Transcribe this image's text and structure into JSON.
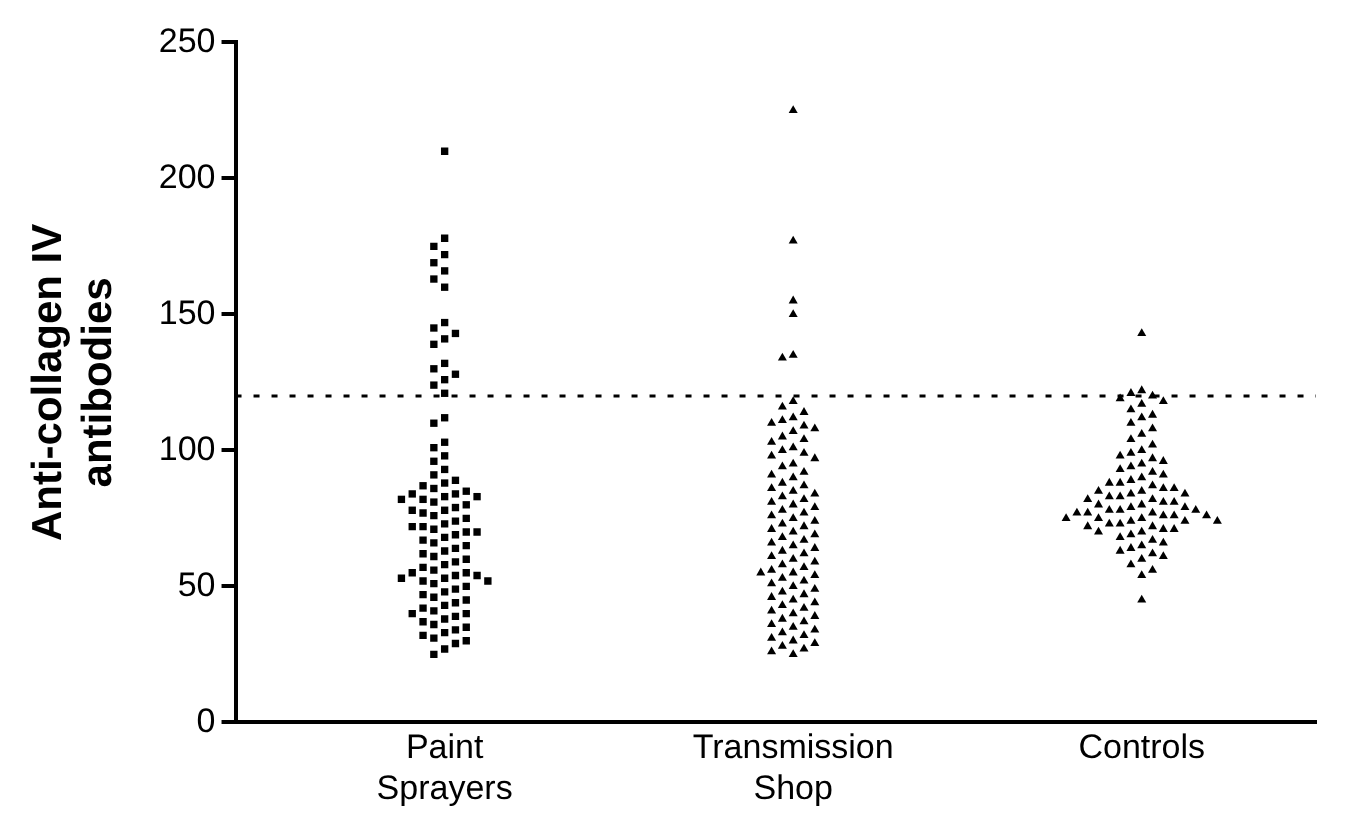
{
  "chart_data": {
    "type": "scatter",
    "ylabel": "Anti-collagen IV antibodies",
    "categories": [
      "Paint Sprayers",
      "Transmission Shop",
      "Controls"
    ],
    "series": [
      {
        "type": "scatter",
        "color": "#000000",
        "marker": "square",
        "x": [
          "Paint Sprayers",
          "Paint Sprayers",
          "Paint Sprayers",
          "Paint Sprayers",
          "Paint Sprayers",
          "Paint Sprayers",
          "Paint Sprayers",
          "Paint Sprayers",
          "Paint Sprayers",
          "Paint Sprayers",
          "Paint Sprayers",
          "Paint Sprayers",
          "Paint Sprayers",
          "Paint Sprayers",
          "Paint Sprayers",
          "Paint Sprayers",
          "Paint Sprayers",
          "Paint Sprayers",
          "Paint Sprayers",
          "Paint Sprayers",
          "Paint Sprayers",
          "Paint Sprayers",
          "Paint Sprayers",
          "Paint Sprayers",
          "Paint Sprayers",
          "Paint Sprayers",
          "Paint Sprayers",
          "Paint Sprayers",
          "Paint Sprayers",
          "Paint Sprayers",
          "Paint Sprayers",
          "Paint Sprayers",
          "Paint Sprayers",
          "Paint Sprayers",
          "Paint Sprayers",
          "Paint Sprayers",
          "Paint Sprayers",
          "Paint Sprayers",
          "Paint Sprayers",
          "Paint Sprayers",
          "Paint Sprayers",
          "Paint Sprayers",
          "Paint Sprayers",
          "Paint Sprayers",
          "Paint Sprayers",
          "Paint Sprayers",
          "Paint Sprayers",
          "Paint Sprayers",
          "Paint Sprayers",
          "Paint Sprayers",
          "Paint Sprayers",
          "Paint Sprayers",
          "Paint Sprayers",
          "Paint Sprayers",
          "Paint Sprayers",
          "Paint Sprayers",
          "Paint Sprayers",
          "Paint Sprayers",
          "Paint Sprayers",
          "Paint Sprayers",
          "Paint Sprayers",
          "Paint Sprayers",
          "Paint Sprayers",
          "Paint Sprayers",
          "Paint Sprayers",
          "Paint Sprayers",
          "Paint Sprayers",
          "Paint Sprayers",
          "Paint Sprayers",
          "Paint Sprayers",
          "Paint Sprayers",
          "Paint Sprayers",
          "Paint Sprayers",
          "Paint Sprayers",
          "Paint Sprayers",
          "Paint Sprayers",
          "Paint Sprayers",
          "Paint Sprayers",
          "Paint Sprayers",
          "Paint Sprayers",
          "Paint Sprayers",
          "Paint Sprayers",
          "Paint Sprayers",
          "Paint Sprayers",
          "Paint Sprayers",
          "Paint Sprayers",
          "Paint Sprayers",
          "Paint Sprayers",
          "Paint Sprayers",
          "Paint Sprayers",
          "Paint Sprayers",
          "Paint Sprayers",
          "Paint Sprayers",
          "Paint Sprayers",
          "Paint Sprayers",
          "Paint Sprayers",
          "Paint Sprayers",
          "Paint Sprayers",
          "Paint Sprayers",
          "Paint Sprayers",
          "Paint Sprayers"
        ],
        "values": [
          210,
          178,
          175,
          172,
          169,
          166,
          163,
          160,
          147,
          145,
          143,
          141,
          139,
          132,
          130,
          128,
          126,
          124,
          121,
          112,
          110,
          103,
          101,
          98,
          96,
          93,
          91,
          89,
          88,
          87,
          86,
          85,
          84,
          84,
          83,
          83,
          82,
          82,
          81,
          80,
          79,
          78,
          78,
          77,
          76,
          75,
          74,
          73,
          72,
          72,
          71,
          70,
          70,
          69,
          68,
          67,
          66,
          65,
          64,
          63,
          62,
          61,
          60,
          59,
          58,
          57,
          56,
          55,
          55,
          54,
          54,
          53,
          53,
          52,
          52,
          51,
          50,
          49,
          48,
          47,
          46,
          45,
          44,
          43,
          42,
          41,
          40,
          40,
          39,
          38,
          37,
          36,
          35,
          34,
          33,
          32,
          31,
          30,
          29,
          27,
          25
        ]
      },
      {
        "type": "scatter",
        "color": "#000000",
        "marker": "triangle",
        "x": [
          "Transmission Shop",
          "Transmission Shop",
          "Transmission Shop",
          "Transmission Shop",
          "Transmission Shop",
          "Transmission Shop",
          "Transmission Shop",
          "Transmission Shop",
          "Transmission Shop",
          "Transmission Shop",
          "Transmission Shop",
          "Transmission Shop",
          "Transmission Shop",
          "Transmission Shop",
          "Transmission Shop",
          "Transmission Shop",
          "Transmission Shop",
          "Transmission Shop",
          "Transmission Shop",
          "Transmission Shop",
          "Transmission Shop",
          "Transmission Shop",
          "Transmission Shop",
          "Transmission Shop",
          "Transmission Shop",
          "Transmission Shop",
          "Transmission Shop",
          "Transmission Shop",
          "Transmission Shop",
          "Transmission Shop",
          "Transmission Shop",
          "Transmission Shop",
          "Transmission Shop",
          "Transmission Shop",
          "Transmission Shop",
          "Transmission Shop",
          "Transmission Shop",
          "Transmission Shop",
          "Transmission Shop",
          "Transmission Shop",
          "Transmission Shop",
          "Transmission Shop",
          "Transmission Shop",
          "Transmission Shop",
          "Transmission Shop",
          "Transmission Shop",
          "Transmission Shop",
          "Transmission Shop",
          "Transmission Shop",
          "Transmission Shop",
          "Transmission Shop",
          "Transmission Shop",
          "Transmission Shop",
          "Transmission Shop",
          "Transmission Shop",
          "Transmission Shop",
          "Transmission Shop",
          "Transmission Shop",
          "Transmission Shop",
          "Transmission Shop",
          "Transmission Shop",
          "Transmission Shop",
          "Transmission Shop",
          "Transmission Shop",
          "Transmission Shop",
          "Transmission Shop",
          "Transmission Shop",
          "Transmission Shop",
          "Transmission Shop",
          "Transmission Shop",
          "Transmission Shop",
          "Transmission Shop",
          "Transmission Shop",
          "Transmission Shop",
          "Transmission Shop",
          "Transmission Shop",
          "Transmission Shop",
          "Transmission Shop",
          "Transmission Shop",
          "Transmission Shop",
          "Transmission Shop",
          "Transmission Shop",
          "Transmission Shop",
          "Transmission Shop",
          "Transmission Shop",
          "Transmission Shop",
          "Transmission Shop",
          "Transmission Shop",
          "Transmission Shop",
          "Transmission Shop",
          "Transmission Shop",
          "Transmission Shop",
          "Transmission Shop"
        ],
        "values": [
          225,
          177,
          155,
          150,
          135,
          134,
          118,
          116,
          114,
          112,
          111,
          110,
          109,
          108,
          107,
          105,
          104,
          103,
          101,
          100,
          99,
          98,
          97,
          95,
          94,
          92,
          91,
          90,
          88,
          87,
          86,
          85,
          84,
          83,
          82,
          81,
          80,
          79,
          78,
          77,
          76,
          75,
          74,
          73,
          72,
          71,
          70,
          69,
          68,
          67,
          66,
          65,
          64,
          63,
          62,
          61,
          60,
          59,
          58,
          57,
          56,
          55,
          55,
          54,
          53,
          52,
          51,
          50,
          49,
          48,
          47,
          46,
          45,
          44,
          43,
          42,
          41,
          40,
          39,
          38,
          37,
          36,
          35,
          34,
          33,
          32,
          31,
          30,
          29,
          28,
          27,
          26,
          25
        ]
      },
      {
        "type": "scatter",
        "color": "#000000",
        "marker": "triangle",
        "x": [
          "Controls",
          "Controls",
          "Controls",
          "Controls",
          "Controls",
          "Controls",
          "Controls",
          "Controls",
          "Controls",
          "Controls",
          "Controls",
          "Controls",
          "Controls",
          "Controls",
          "Controls",
          "Controls",
          "Controls",
          "Controls",
          "Controls",
          "Controls",
          "Controls",
          "Controls",
          "Controls",
          "Controls",
          "Controls",
          "Controls",
          "Controls",
          "Controls",
          "Controls",
          "Controls",
          "Controls",
          "Controls",
          "Controls",
          "Controls",
          "Controls",
          "Controls",
          "Controls",
          "Controls",
          "Controls",
          "Controls",
          "Controls",
          "Controls",
          "Controls",
          "Controls",
          "Controls",
          "Controls",
          "Controls",
          "Controls",
          "Controls",
          "Controls",
          "Controls",
          "Controls",
          "Controls",
          "Controls",
          "Controls",
          "Controls",
          "Controls",
          "Controls",
          "Controls",
          "Controls",
          "Controls",
          "Controls",
          "Controls",
          "Controls",
          "Controls",
          "Controls",
          "Controls",
          "Controls",
          "Controls",
          "Controls",
          "Controls",
          "Controls",
          "Controls",
          "Controls",
          "Controls",
          "Controls",
          "Controls",
          "Controls",
          "Controls",
          "Controls",
          "Controls",
          "Controls",
          "Controls"
        ],
        "values": [
          143,
          122,
          121,
          120,
          119,
          118,
          117,
          115,
          113,
          112,
          110,
          108,
          106,
          104,
          102,
          100,
          99,
          98,
          97,
          96,
          95,
          94,
          93,
          92,
          91,
          90,
          89,
          88,
          88,
          87,
          86,
          86,
          85,
          85,
          84,
          84,
          83,
          83,
          82,
          82,
          81,
          81,
          80,
          80,
          79,
          79,
          78,
          78,
          78,
          77,
          77,
          77,
          76,
          76,
          76,
          75,
          75,
          75,
          74,
          74,
          74,
          73,
          73,
          72,
          72,
          71,
          71,
          70,
          70,
          69,
          68,
          67,
          66,
          65,
          64,
          63,
          62,
          61,
          60,
          58,
          56,
          54,
          45
        ]
      }
    ],
    "ylim": [
      0,
      250
    ],
    "yticks": [
      0,
      50,
      100,
      150,
      200,
      250
    ],
    "ref_lines": [
      {
        "axis": "y",
        "value": 120,
        "color": "#000000",
        "line_style": "dotted"
      }
    ],
    "grid": false,
    "legend": false
  }
}
